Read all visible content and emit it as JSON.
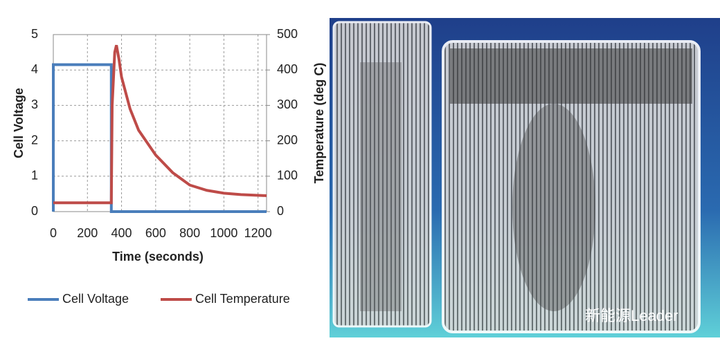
{
  "chart_data": {
    "type": "line",
    "xlabel": "Time (seconds)",
    "ylabel": "Cell Voltage",
    "y2label": "Temperature (deg C)",
    "xlim": [
      0,
      1250
    ],
    "xticks": [
      0,
      200,
      400,
      600,
      800,
      1000,
      1200
    ],
    "ylim": [
      0,
      5
    ],
    "yticks": [
      0,
      1,
      2,
      3,
      4,
      5
    ],
    "y2lim": [
      0,
      500
    ],
    "y2ticks": [
      0,
      100,
      200,
      300,
      400,
      500
    ],
    "grid": true,
    "legend": "bottom",
    "series": [
      {
        "name": "Cell Voltage",
        "color": "#4a7ebb",
        "x": [
          0,
          0,
          340,
          340,
          1250
        ],
        "values": [
          0,
          4.15,
          4.15,
          0,
          0
        ]
      },
      {
        "name": "Cell Temperature",
        "color": "#be4b48",
        "axis": "y2",
        "x": [
          0,
          340,
          345,
          360,
          370,
          385,
          400,
          450,
          500,
          600,
          700,
          800,
          900,
          1000,
          1100,
          1250
        ],
        "values": [
          25,
          25,
          300,
          450,
          470,
          430,
          380,
          290,
          230,
          160,
          110,
          75,
          60,
          52,
          48,
          45
        ]
      }
    ]
  },
  "watermark": "新能源Leader"
}
